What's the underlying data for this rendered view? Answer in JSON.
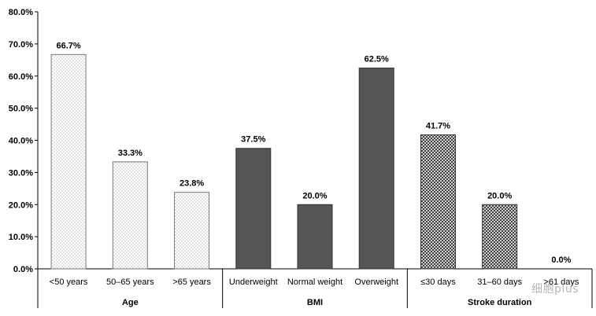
{
  "chart_data": {
    "type": "bar",
    "ylim": [
      0,
      80
    ],
    "yticks": [
      0,
      10,
      20,
      30,
      40,
      50,
      60,
      70,
      80
    ],
    "ytick_labels": [
      "0.0%",
      "10.0%",
      "20.0%",
      "30.0%",
      "40.0%",
      "50.0%",
      "60.0%",
      "70.0%",
      "80.0%"
    ],
    "grid": false,
    "groups": [
      {
        "name": "Age",
        "pattern": "dotted",
        "categories": [
          "<50 years",
          "50–65 years",
          ">65 years"
        ],
        "values": [
          66.7,
          33.3,
          23.8
        ],
        "value_labels": [
          "66.7%",
          "33.3%",
          "23.8%"
        ]
      },
      {
        "name": "BMI",
        "pattern": "solid-dark",
        "categories": [
          "Underweight",
          "Normal weight",
          "Overweight"
        ],
        "values": [
          37.5,
          20.0,
          62.5
        ],
        "value_labels": [
          "37.5%",
          "20.0%",
          "62.5%"
        ]
      },
      {
        "name": "Stroke duration",
        "pattern": "crosshatch",
        "categories": [
          "≤30 days",
          "31–60 days",
          ">61 days"
        ],
        "values": [
          41.7,
          20.0,
          0.0
        ],
        "value_labels": [
          "41.7%",
          "20.0%",
          "0.0%"
        ]
      }
    ]
  },
  "colors": {
    "bar_dark": "#555555",
    "dots": "#8a8a8a",
    "hatch": "#333333",
    "axis": "#000000"
  },
  "watermark": "细胞plus"
}
